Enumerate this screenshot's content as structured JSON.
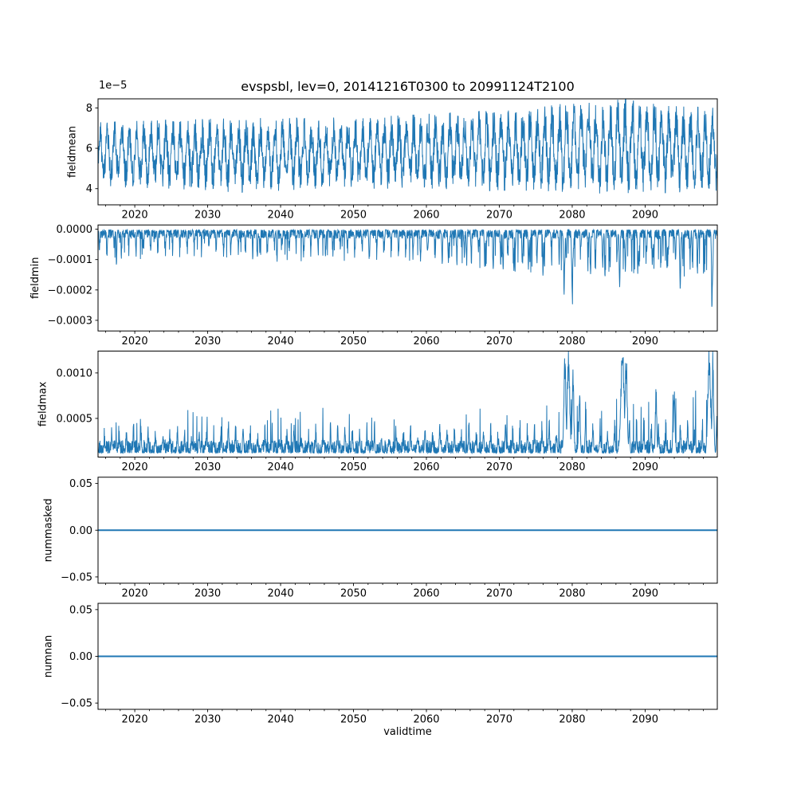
{
  "figure": {
    "title": "evspsbl, lev=0, 20141216T0300 to 20991124T2100",
    "xlabel": "validtime",
    "offset_label": "1e−5",
    "background": "#ffffff",
    "line_color": "#1f77b4",
    "axis_color": "#000000",
    "x_range": [
      2014.96,
      2099.9
    ],
    "x_major_ticks": [
      2020,
      2030,
      2040,
      2050,
      2060,
      2070,
      2080,
      2090
    ],
    "x_minor_step": 2
  },
  "chart_data": [
    {
      "type": "line",
      "name": "fieldmean",
      "ylabel": "fieldmean",
      "ylim": [
        3.2e-05,
        8.45e-05
      ],
      "y_ticks": [
        {
          "v": 4e-05,
          "label": "4"
        },
        {
          "v": 6e-05,
          "label": "6"
        },
        {
          "v": 8e-05,
          "label": "8"
        }
      ],
      "offset_text": "1e−5",
      "line_width": 1,
      "series_kind": "seasonal_band",
      "unit_scale": 1e-05,
      "envelope": [
        [
          2015,
          4.1,
          7.3
        ],
        [
          2025,
          4.0,
          7.4
        ],
        [
          2035,
          3.8,
          7.5
        ],
        [
          2045,
          4.0,
          7.5
        ],
        [
          2055,
          4.0,
          7.6
        ],
        [
          2065,
          3.9,
          7.8
        ],
        [
          2075,
          3.9,
          8.0
        ],
        [
          2082,
          3.8,
          8.4
        ],
        [
          2087,
          3.7,
          8.45
        ],
        [
          2093,
          3.8,
          8.1
        ],
        [
          2099.9,
          3.9,
          8.0
        ]
      ]
    },
    {
      "type": "line",
      "name": "fieldmin",
      "ylabel": "fieldmin",
      "ylim": [
        -0.000335,
        1.4e-05
      ],
      "y_ticks": [
        {
          "v": 0,
          "label": "0.0000"
        },
        {
          "v": -0.0001,
          "label": "−0.0001"
        },
        {
          "v": -0.0002,
          "label": "−0.0002"
        },
        {
          "v": -0.0003,
          "label": "−0.0003"
        }
      ],
      "line_width": 1,
      "series_kind": "spikes_down",
      "unit_scale": 0.0001,
      "typical_depth": [
        [
          2015,
          1.0
        ],
        [
          2040,
          1.05
        ],
        [
          2055,
          1.1
        ],
        [
          2065,
          1.3
        ],
        [
          2075,
          1.5
        ],
        [
          2085,
          1.5
        ],
        [
          2095,
          1.6
        ],
        [
          2099.9,
          1.6
        ]
      ],
      "events": [
        [
          2017.5,
          1.35,
          0.08
        ],
        [
          2036.8,
          1.3,
          0.08
        ],
        [
          2039.5,
          1.25,
          0.08
        ],
        [
          2063.0,
          1.45,
          0.08
        ],
        [
          2065.5,
          1.4,
          0.08
        ],
        [
          2068.0,
          1.5,
          0.08
        ],
        [
          2070.5,
          1.55,
          0.08
        ],
        [
          2072.0,
          1.6,
          0.08
        ],
        [
          2074.0,
          1.7,
          0.08
        ],
        [
          2076.0,
          1.6,
          0.08
        ],
        [
          2078.9,
          2.5,
          0.12
        ],
        [
          2080.0,
          2.75,
          0.12
        ],
        [
          2082.5,
          1.9,
          0.09
        ],
        [
          2084.5,
          1.6,
          0.09
        ],
        [
          2086.5,
          2.05,
          0.1
        ],
        [
          2087.3,
          1.75,
          0.1
        ],
        [
          2089.0,
          1.5,
          0.09
        ],
        [
          2091.0,
          1.4,
          0.09
        ],
        [
          2093.0,
          1.6,
          0.09
        ],
        [
          2094.8,
          2.2,
          0.1
        ],
        [
          2096.5,
          1.5,
          0.09
        ],
        [
          2099.2,
          3.1,
          0.12
        ]
      ]
    },
    {
      "type": "line",
      "name": "fieldmax",
      "ylabel": "fieldmax",
      "ylim": [
        7.5e-05,
        0.00124
      ],
      "y_ticks": [
        {
          "v": 0.0005,
          "label": "0.0005"
        },
        {
          "v": 0.001,
          "label": "0.0010"
        }
      ],
      "line_width": 1,
      "series_kind": "spikes_up",
      "unit_scale": 0.0001,
      "annual_amp": [
        [
          2015,
          3.4
        ],
        [
          2040,
          3.4
        ],
        [
          2055,
          3.5
        ],
        [
          2065,
          3.6
        ],
        [
          2075,
          3.8
        ],
        [
          2085,
          4.2
        ],
        [
          2095,
          4.5
        ],
        [
          2099.9,
          4.5
        ]
      ],
      "events": [
        [
          2079.0,
          11.5,
          0.18
        ],
        [
          2079.5,
          12.4,
          0.22
        ],
        [
          2080.1,
          10.5,
          0.15
        ],
        [
          2081.0,
          7.0,
          0.12
        ],
        [
          2086.9,
          12.4,
          0.3
        ],
        [
          2087.4,
          11.8,
          0.2
        ],
        [
          2091.5,
          8.0,
          0.12
        ],
        [
          2094.0,
          8.5,
          0.12
        ],
        [
          2098.8,
          12.4,
          0.25
        ],
        [
          2099.3,
          11.5,
          0.15
        ]
      ]
    },
    {
      "type": "line",
      "name": "nummasked",
      "ylabel": "nummasked",
      "ylim": [
        -0.0567,
        0.0567
      ],
      "y_ticks": [
        {
          "v": -0.05,
          "label": "−0.05"
        },
        {
          "v": 0,
          "label": "0.00"
        },
        {
          "v": 0.05,
          "label": "0.05"
        }
      ],
      "line_width": 2,
      "series_kind": "flat",
      "flat_value": 0
    },
    {
      "type": "line",
      "name": "numnan",
      "ylabel": "numnan",
      "ylim": [
        -0.0567,
        0.0567
      ],
      "y_ticks": [
        {
          "v": -0.05,
          "label": "−0.05"
        },
        {
          "v": 0,
          "label": "0.00"
        },
        {
          "v": 0.05,
          "label": "0.05"
        }
      ],
      "line_width": 2,
      "series_kind": "flat",
      "flat_value": 0
    }
  ]
}
